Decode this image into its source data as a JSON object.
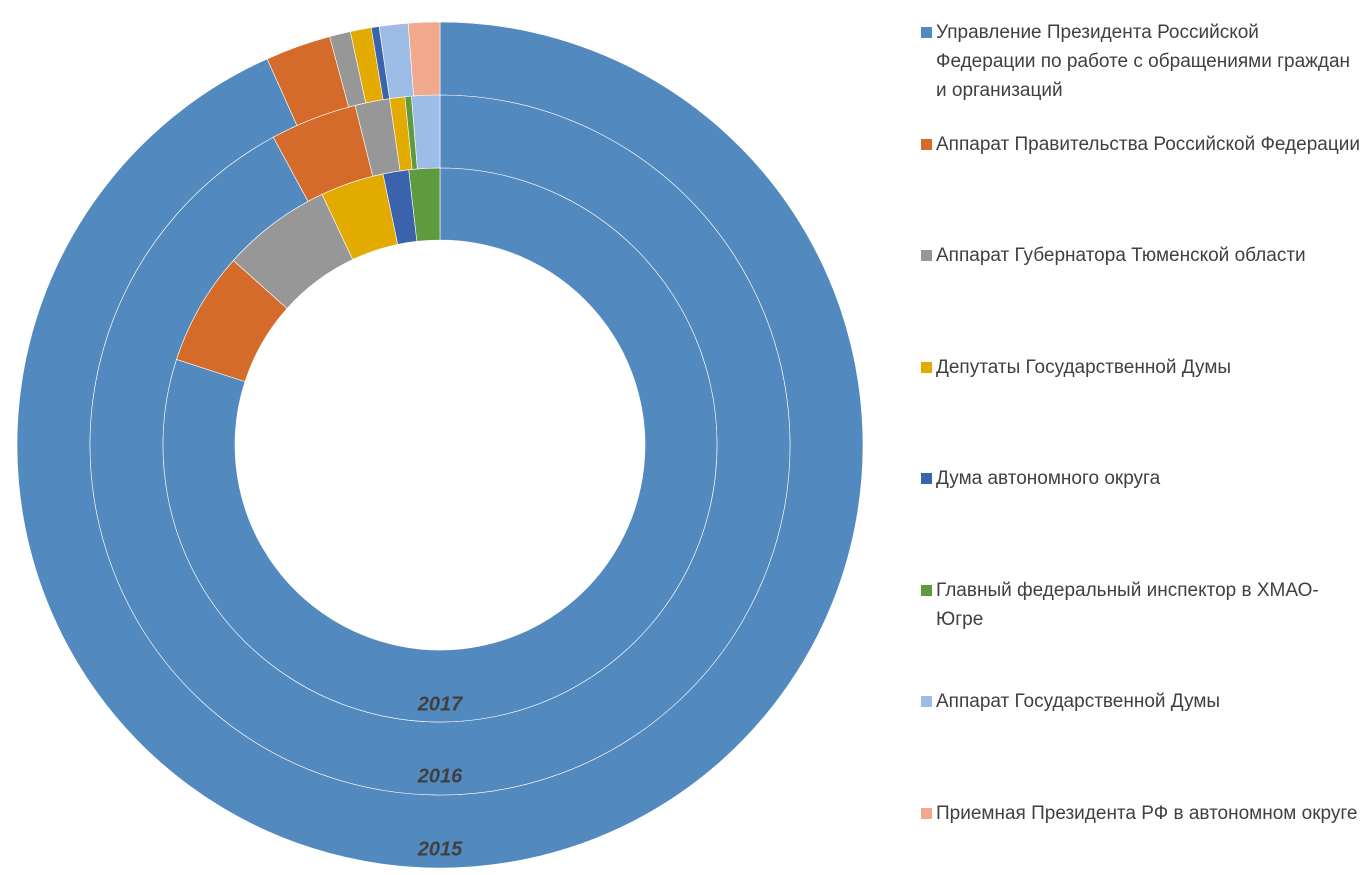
{
  "chart_data": {
    "type": "donut",
    "categories": [
      "Управление Президента Российской Федерации по работе с обращениями граждан и организаций",
      "Аппарат Правительства Российской Федерации",
      "Аппарат Губернатора Тюменской области",
      "Депутаты Государственной Думы",
      "Дума автономного округа",
      "Главный федеральный инспектор в ХМАО-Югре",
      "Аппарат Государственной Думы",
      "Приемная Президента РФ в автономном округе"
    ],
    "colors": [
      "#5289be",
      "#d46b2a",
      "#979797",
      "#e3aa00",
      "#3b62ad",
      "#5e9a3e",
      "#9dbde6",
      "#f2a88d"
    ],
    "series": [
      {
        "name": "2015",
        "values": [
          93.3,
          2.5,
          0.8,
          0.8,
          0.3,
          0,
          1.1,
          1.2
        ]
      },
      {
        "name": "2016",
        "values": [
          92.1,
          4.0,
          1.6,
          0.7,
          0,
          0.3,
          1.3,
          0
        ]
      },
      {
        "name": "2017",
        "values": [
          80,
          6.6,
          6.4,
          3.7,
          1.5,
          1.8,
          0,
          0
        ]
      }
    ]
  }
}
